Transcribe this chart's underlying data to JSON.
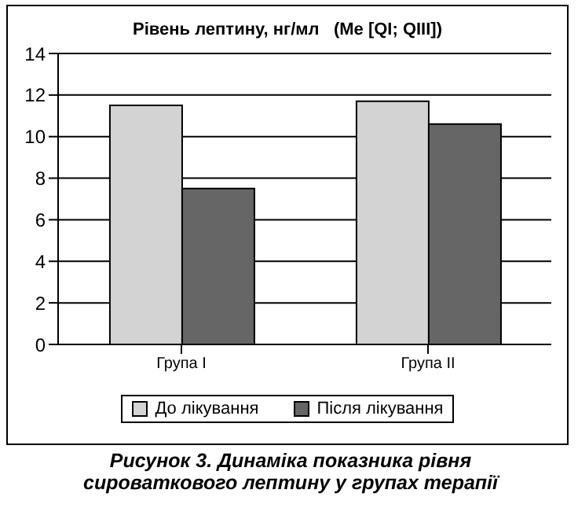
{
  "chart_data": {
    "type": "bar",
    "title": "Рівень лептину, нг/мл   (Ме [QI; QIII])",
    "categories": [
      "Група I",
      "Група II"
    ],
    "series": [
      {
        "name": "До лікування",
        "color": "#d3d3d3",
        "values": [
          11.5,
          11.7
        ]
      },
      {
        "name": "Після лікування",
        "color": "#666666",
        "values": [
          7.5,
          10.6
        ]
      }
    ],
    "ylim": [
      0,
      14
    ],
    "yticks": [
      0,
      2,
      4,
      6,
      8,
      10,
      12,
      14
    ],
    "grid": "y",
    "legend": "bottom",
    "annotations": [
      "Рисунок 3. Динаміка показника рівня сироваткового лептину у групах терапії"
    ]
  }
}
